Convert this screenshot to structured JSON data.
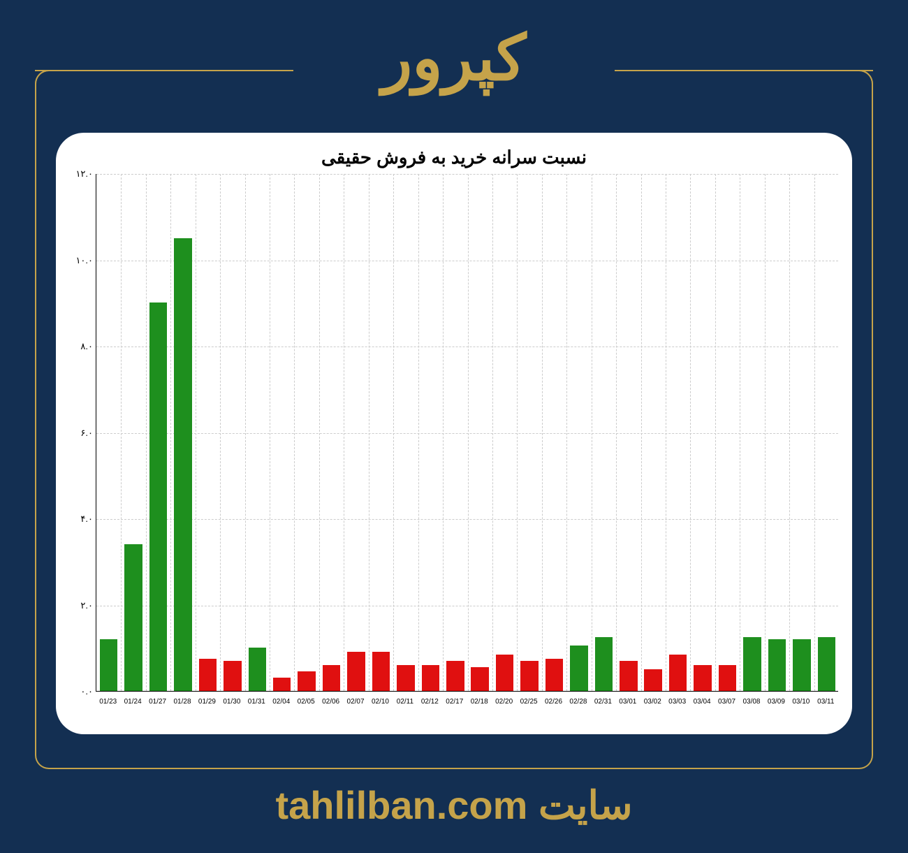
{
  "header": {
    "title": "کپرور",
    "title_color": "#c5a34a",
    "title_fontsize": 90
  },
  "footer": {
    "prefix": "سایت",
    "url": "tahlilban.com",
    "color": "#c5a34a",
    "fontsize": 56
  },
  "frame": {
    "border_color": "#c5a34a",
    "background_color": "#132f52"
  },
  "chart": {
    "type": "bar",
    "title": "نسبت سرانه خرید به فروش حقیقی",
    "title_fontsize": 26,
    "title_color": "#000000",
    "background_color": "#ffffff",
    "panel_radius": 40,
    "grid_color": "#cccccc",
    "axis_color": "#000000",
    "ylim": [
      0,
      12
    ],
    "yticks": [
      0,
      2,
      4,
      6,
      8,
      10,
      12
    ],
    "ytick_labels": [
      "۰.۰",
      "۲.۰",
      "۴.۰",
      "۶.۰",
      "۸.۰",
      "۱۰.۰",
      "۱۲.۰"
    ],
    "ytick_fontsize": 13,
    "xtick_fontsize": 10,
    "bar_width_ratio": 0.72,
    "color_positive": "#1e8f1e",
    "color_negative": "#e01010",
    "categories": [
      "01/23",
      "01/24",
      "01/27",
      "01/28",
      "01/29",
      "01/30",
      "01/31",
      "02/04",
      "02/05",
      "02/06",
      "02/07",
      "02/10",
      "02/11",
      "02/12",
      "02/17",
      "02/18",
      "02/20",
      "02/25",
      "02/26",
      "02/28",
      "02/31",
      "03/01",
      "03/02",
      "03/03",
      "03/04",
      "03/07",
      "03/08",
      "03/09",
      "03/10",
      "03/11"
    ],
    "values": [
      1.2,
      3.4,
      9.0,
      10.5,
      0.75,
      0.7,
      1.0,
      0.3,
      0.45,
      0.6,
      0.9,
      0.9,
      0.6,
      0.6,
      0.7,
      0.55,
      0.85,
      0.7,
      0.75,
      1.05,
      1.25,
      0.7,
      0.5,
      0.85,
      0.6,
      0.6,
      1.25,
      1.2,
      1.2,
      1.25
    ],
    "bar_colors": [
      "#1e8f1e",
      "#1e8f1e",
      "#1e8f1e",
      "#1e8f1e",
      "#e01010",
      "#e01010",
      "#1e8f1e",
      "#e01010",
      "#e01010",
      "#e01010",
      "#e01010",
      "#e01010",
      "#e01010",
      "#e01010",
      "#e01010",
      "#e01010",
      "#e01010",
      "#e01010",
      "#e01010",
      "#1e8f1e",
      "#1e8f1e",
      "#e01010",
      "#e01010",
      "#e01010",
      "#e01010",
      "#e01010",
      "#1e8f1e",
      "#1e8f1e",
      "#1e8f1e",
      "#1e8f1e"
    ]
  }
}
